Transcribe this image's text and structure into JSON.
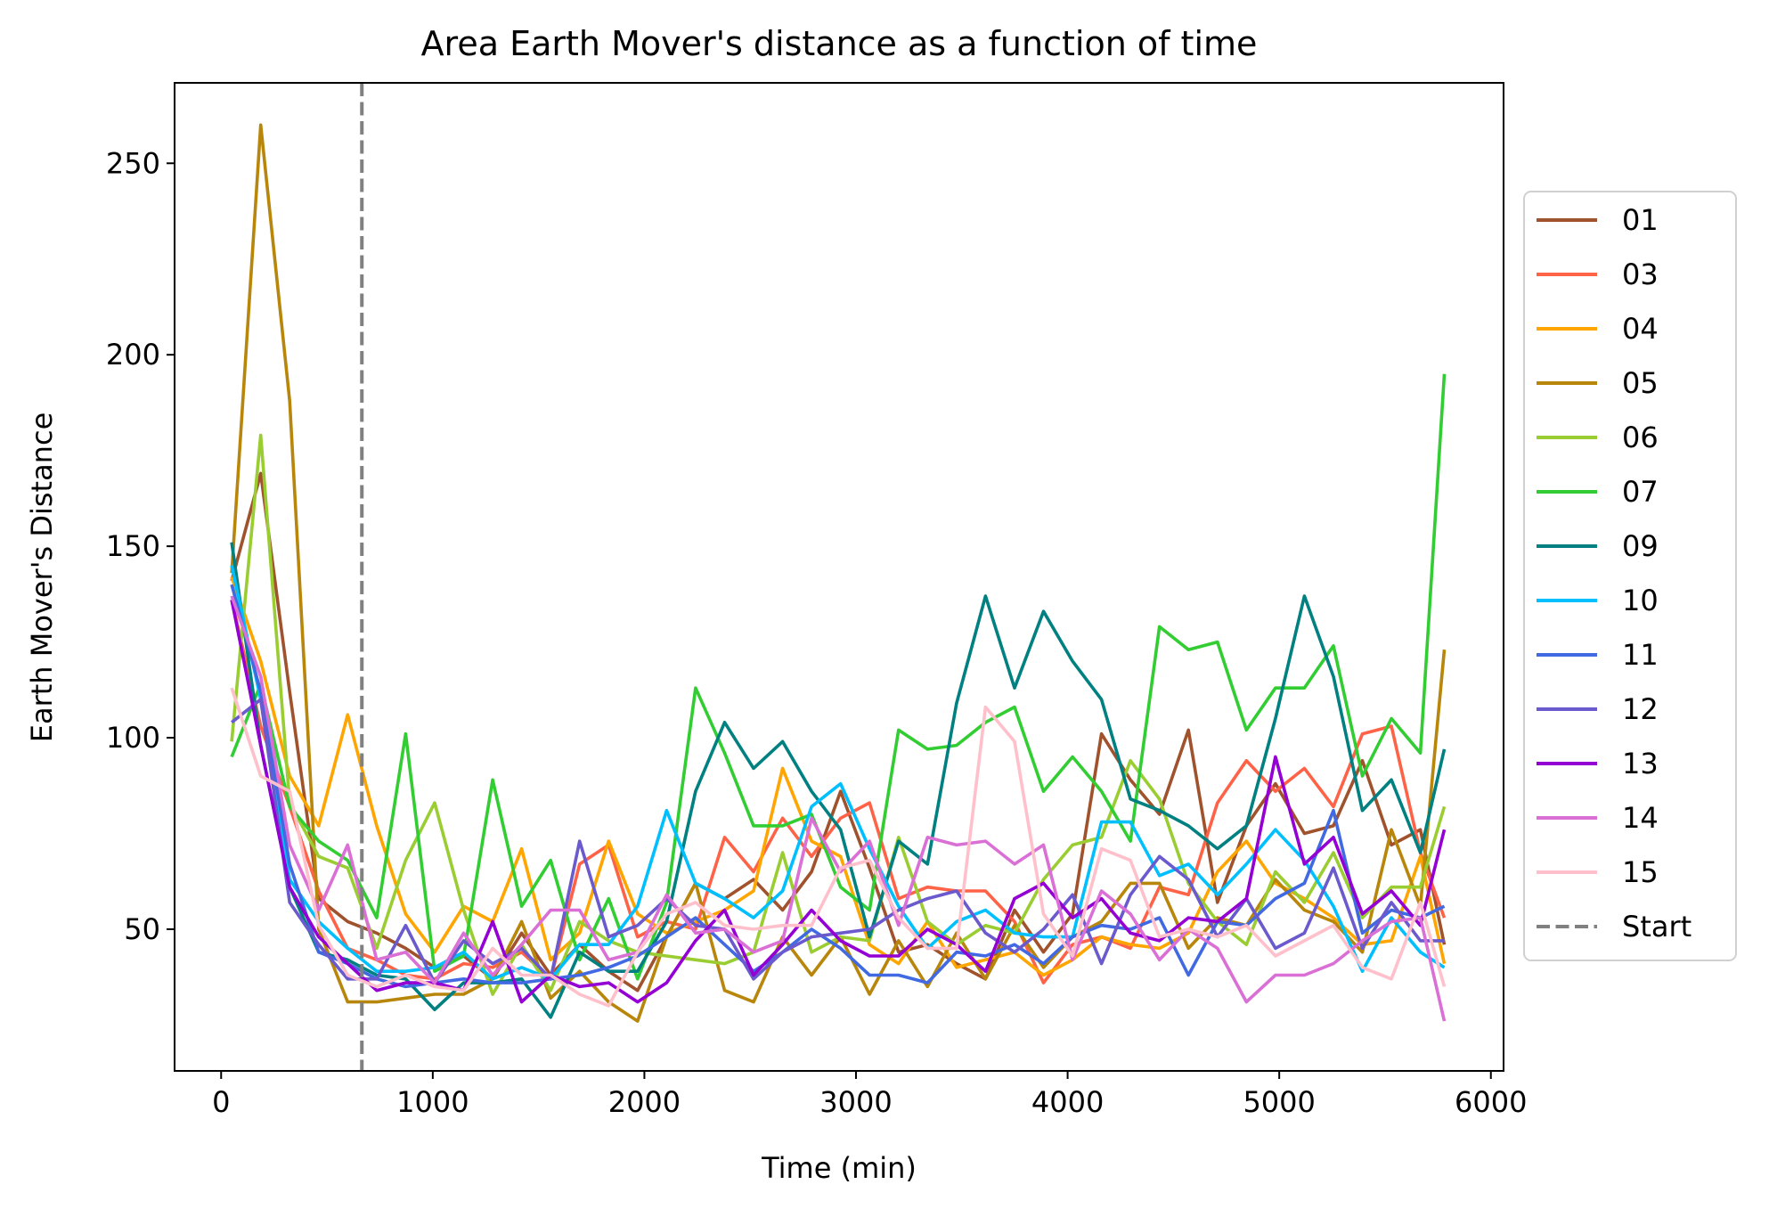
{
  "chart_data": {
    "type": "line",
    "title": "Area Earth Mover's distance as a function of time",
    "xlabel": "Time (min)",
    "ylabel": "Earth Mover's Distance",
    "xlim": [
      -220,
      6060
    ],
    "ylim": [
      13,
      271
    ],
    "xticks": [
      0,
      1000,
      2000,
      3000,
      4000,
      5000,
      6000
    ],
    "yticks": [
      50,
      100,
      150,
      200,
      250
    ],
    "xtick_labels": [
      "0",
      "1000",
      "2000",
      "3000",
      "4000",
      "5000",
      "6000"
    ],
    "ytick_labels": [
      "50",
      "100",
      "150",
      "200",
      "250"
    ],
    "grid": false,
    "legend_position": "right, outside plot",
    "x": [
      50,
      187,
      324,
      461,
      598,
      735,
      872,
      1009,
      1146,
      1283,
      1420,
      1557,
      1694,
      1831,
      1968,
      2105,
      2242,
      2379,
      2516,
      2653,
      2790,
      2927,
      3064,
      3201,
      3338,
      3475,
      3612,
      3749,
      3886,
      4023,
      4160,
      4297,
      4434,
      4571,
      4708,
      4845,
      4982,
      5119,
      5256,
      5393,
      5530,
      5667,
      5780
    ],
    "series": [
      {
        "name": "01",
        "color": "#A0522D",
        "values": [
          141,
          169,
          112,
          58,
          52,
          49,
          45,
          40,
          43,
          37,
          49,
          38,
          46,
          39,
          34,
          48,
          62,
          58,
          63,
          55,
          65,
          86,
          66,
          44,
          46,
          41,
          37,
          55,
          44,
          54,
          101,
          89,
          80,
          102,
          57,
          77,
          88,
          75,
          77,
          94,
          72,
          76,
          46
        ]
      },
      {
        "name": "03",
        "color": "#FF6347",
        "values": [
          136,
          103,
          82,
          60,
          45,
          42,
          38,
          37,
          41,
          40,
          44,
          37,
          67,
          72,
          48,
          52,
          50,
          74,
          65,
          79,
          69,
          79,
          83,
          58,
          61,
          60,
          60,
          52,
          36,
          46,
          48,
          45,
          61,
          59,
          83,
          94,
          86,
          92,
          82,
          101,
          103,
          70,
          53
        ]
      },
      {
        "name": "04",
        "color": "#FFA500",
        "values": [
          142,
          120,
          90,
          77,
          106,
          77,
          54,
          44,
          56,
          52,
          71,
          42,
          49,
          73,
          54,
          49,
          52,
          55,
          60,
          92,
          73,
          69,
          46,
          41,
          52,
          40,
          42,
          44,
          38,
          42,
          48,
          46,
          45,
          49,
          65,
          73,
          62,
          58,
          53,
          46,
          47,
          69,
          41
        ]
      },
      {
        "name": "05",
        "color": "#B8860B",
        "values": [
          143,
          260,
          188,
          50,
          31,
          31,
          32,
          33,
          33,
          37,
          52,
          32,
          39,
          31,
          26,
          48,
          62,
          34,
          31,
          48,
          38,
          48,
          33,
          47,
          35,
          49,
          37,
          51,
          40,
          48,
          52,
          62,
          62,
          45,
          53,
          51,
          63,
          55,
          52,
          44,
          76,
          56,
          123
        ]
      },
      {
        "name": "06",
        "color": "#9ACD32",
        "values": [
          99,
          179,
          83,
          69,
          66,
          45,
          68,
          83,
          55,
          33,
          46,
          34,
          52,
          47,
          44,
          43,
          42,
          41,
          44,
          70,
          44,
          48,
          47,
          74,
          52,
          46,
          51,
          49,
          63,
          72,
          74,
          94,
          84,
          62,
          52,
          46,
          65,
          57,
          70,
          53,
          61,
          61,
          82
        ]
      },
      {
        "name": "07",
        "color": "#32CD32",
        "values": [
          95,
          114,
          82,
          73,
          68,
          53,
          101,
          39,
          43,
          89,
          56,
          68,
          42,
          58,
          37,
          57,
          113,
          96,
          77,
          77,
          80,
          61,
          55,
          102,
          97,
          98,
          104,
          108,
          86,
          95,
          86,
          73,
          129,
          123,
          125,
          102,
          113,
          113,
          124,
          90,
          105,
          96,
          195
        ]
      },
      {
        "name": "09",
        "color": "#008080",
        "values": [
          151,
          98,
          61,
          44,
          42,
          38,
          37,
          29,
          36,
          36,
          37,
          27,
          44,
          39,
          39,
          52,
          86,
          104,
          92,
          99,
          86,
          76,
          48,
          73,
          67,
          109,
          137,
          113,
          133,
          120,
          110,
          84,
          81,
          77,
          71,
          77,
          105,
          137,
          116,
          81,
          89,
          70,
          97
        ]
      },
      {
        "name": "10",
        "color": "#00BFFF",
        "values": [
          145,
          110,
          63,
          52,
          45,
          39,
          39,
          40,
          44,
          37,
          40,
          37,
          46,
          46,
          56,
          81,
          62,
          58,
          53,
          60,
          82,
          88,
          71,
          56,
          45,
          52,
          55,
          49,
          48,
          48,
          78,
          78,
          64,
          67,
          59,
          67,
          76,
          68,
          56,
          39,
          53,
          44,
          40
        ]
      },
      {
        "name": "11",
        "color": "#4169E1",
        "values": [
          140,
          112,
          67,
          44,
          41,
          37,
          35,
          36,
          37,
          36,
          36,
          37,
          38,
          40,
          43,
          48,
          53,
          46,
          39,
          44,
          50,
          45,
          38,
          38,
          36,
          44,
          43,
          46,
          41,
          48,
          51,
          50,
          53,
          38,
          52,
          51,
          58,
          62,
          81,
          49,
          55,
          53,
          56
        ]
      },
      {
        "name": "12",
        "color": "#6A5ACD",
        "values": [
          104,
          110,
          57,
          46,
          37,
          37,
          51,
          36,
          47,
          41,
          45,
          37,
          73,
          48,
          51,
          58,
          51,
          50,
          37,
          44,
          48,
          49,
          50,
          55,
          58,
          60,
          49,
          44,
          50,
          59,
          41,
          59,
          69,
          63,
          48,
          58,
          45,
          49,
          66,
          45,
          57,
          47,
          47
        ]
      },
      {
        "name": "13",
        "color": "#9400D3",
        "values": [
          136,
          98,
          61,
          48,
          41,
          34,
          36,
          36,
          34,
          52,
          31,
          38,
          35,
          36,
          31,
          36,
          47,
          55,
          38,
          46,
          55,
          47,
          43,
          43,
          50,
          46,
          39,
          58,
          62,
          53,
          58,
          49,
          47,
          53,
          52,
          58,
          95,
          67,
          74,
          54,
          60,
          51,
          76
        ]
      },
      {
        "name": "14",
        "color": "#DA70D6",
        "values": [
          137,
          116,
          72,
          55,
          72,
          42,
          44,
          36,
          49,
          38,
          46,
          55,
          55,
          42,
          44,
          59,
          49,
          50,
          44,
          47,
          79,
          65,
          73,
          51,
          74,
          72,
          73,
          67,
          72,
          42,
          60,
          54,
          42,
          50,
          45,
          31,
          38,
          38,
          41,
          47,
          52,
          53,
          26
        ]
      },
      {
        "name": "15",
        "color": "#FFC0CB",
        "values": [
          113,
          90,
          86,
          51,
          38,
          35,
          38,
          35,
          34,
          45,
          38,
          38,
          33,
          30,
          44,
          54,
          57,
          51,
          50,
          51,
          51,
          66,
          68,
          53,
          45,
          45,
          108,
          99,
          54,
          43,
          71,
          68,
          48,
          50,
          48,
          51,
          43,
          47,
          51,
          40,
          37,
          57,
          35
        ]
      }
    ],
    "annotations": [
      {
        "type": "vline",
        "label": "Start",
        "x": 665,
        "color": "#808080",
        "style": "dashed"
      }
    ]
  }
}
